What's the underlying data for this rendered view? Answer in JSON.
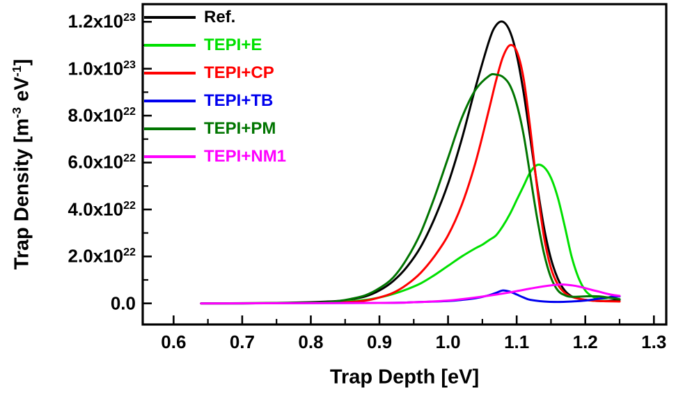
{
  "figure": {
    "background": "#ffffff"
  },
  "chart_data": {
    "type": "line",
    "title": "",
    "xlabel": "Trap Depth [eV]",
    "ylabel_parts": [
      {
        "text": "Trap Density [m"
      },
      {
        "sup": "-3"
      },
      {
        "text": " eV"
      },
      {
        "sup": "-1"
      },
      {
        "text": "]"
      }
    ],
    "grid": false,
    "legend_position": "top-left",
    "x_axis": {
      "min": 0.555,
      "max": 1.318,
      "major_ticks": [
        0.6,
        0.7,
        0.8,
        0.9,
        1.0,
        1.1,
        1.2,
        1.3
      ],
      "tick_labels": [
        "0.6",
        "0.7",
        "0.8",
        "0.9",
        "1.0",
        "1.1",
        "1.2",
        "1.3"
      ],
      "minor_ticks": [
        0.65,
        0.75,
        0.85,
        0.95,
        1.05,
        1.15,
        1.25
      ]
    },
    "y_axis": {
      "values_scale": "1e22",
      "min": -0.9,
      "max": 12.75,
      "major_ticks": [
        0,
        2,
        4,
        6,
        8,
        10,
        12
      ],
      "tick_labels": [
        {
          "base": "0.0",
          "exp": ""
        },
        {
          "base": "2.0x10",
          "exp": "22"
        },
        {
          "base": "4.0x10",
          "exp": "22"
        },
        {
          "base": "6.0x10",
          "exp": "22"
        },
        {
          "base": "8.0x10",
          "exp": "22"
        },
        {
          "base": "1.0x10",
          "exp": "23"
        },
        {
          "base": "1.2x10",
          "exp": "23"
        }
      ],
      "minor_ticks": [
        1,
        3,
        5,
        7,
        9,
        11
      ]
    },
    "series": [
      {
        "name": "Ref.",
        "color": "#000000",
        "points": [
          [
            0.64,
            0
          ],
          [
            0.7,
            0
          ],
          [
            0.75,
            0.02
          ],
          [
            0.8,
            0.05
          ],
          [
            0.84,
            0.1
          ],
          [
            0.86,
            0.18
          ],
          [
            0.88,
            0.3
          ],
          [
            0.9,
            0.55
          ],
          [
            0.92,
            0.95
          ],
          [
            0.94,
            1.55
          ],
          [
            0.96,
            2.4
          ],
          [
            0.98,
            3.6
          ],
          [
            1.0,
            5.1
          ],
          [
            1.02,
            7.0
          ],
          [
            1.04,
            9.2
          ],
          [
            1.06,
            11.2
          ],
          [
            1.07,
            11.85
          ],
          [
            1.08,
            12.0
          ],
          [
            1.09,
            11.6
          ],
          [
            1.1,
            10.6
          ],
          [
            1.11,
            9.0
          ],
          [
            1.12,
            7.0
          ],
          [
            1.13,
            5.0
          ],
          [
            1.14,
            3.2
          ],
          [
            1.15,
            1.9
          ],
          [
            1.16,
            1.05
          ],
          [
            1.17,
            0.55
          ],
          [
            1.18,
            0.3
          ],
          [
            1.19,
            0.2
          ],
          [
            1.2,
            0.15
          ],
          [
            1.22,
            0.1
          ],
          [
            1.24,
            0.12
          ],
          [
            1.25,
            0.15
          ]
        ]
      },
      {
        "name": "TEPI+E",
        "color": "#00e000",
        "points": [
          [
            0.64,
            0
          ],
          [
            0.8,
            0.02
          ],
          [
            0.85,
            0.08
          ],
          [
            0.88,
            0.15
          ],
          [
            0.9,
            0.25
          ],
          [
            0.92,
            0.4
          ],
          [
            0.94,
            0.6
          ],
          [
            0.96,
            0.85
          ],
          [
            0.98,
            1.2
          ],
          [
            1.0,
            1.6
          ],
          [
            1.02,
            2.0
          ],
          [
            1.04,
            2.35
          ],
          [
            1.05,
            2.5
          ],
          [
            1.06,
            2.7
          ],
          [
            1.07,
            2.9
          ],
          [
            1.08,
            3.3
          ],
          [
            1.09,
            3.8
          ],
          [
            1.1,
            4.4
          ],
          [
            1.11,
            5.0
          ],
          [
            1.12,
            5.6
          ],
          [
            1.13,
            5.9
          ],
          [
            1.14,
            5.8
          ],
          [
            1.15,
            5.35
          ],
          [
            1.16,
            4.5
          ],
          [
            1.17,
            3.3
          ],
          [
            1.18,
            2.0
          ],
          [
            1.19,
            1.1
          ],
          [
            1.2,
            0.55
          ],
          [
            1.21,
            0.3
          ],
          [
            1.22,
            0.2
          ],
          [
            1.23,
            0.22
          ],
          [
            1.24,
            0.3
          ],
          [
            1.25,
            0.3
          ]
        ]
      },
      {
        "name": "TEPI+CP",
        "color": "#ff0000",
        "points": [
          [
            0.64,
            0
          ],
          [
            0.8,
            0.02
          ],
          [
            0.85,
            0.05
          ],
          [
            0.88,
            0.12
          ],
          [
            0.9,
            0.25
          ],
          [
            0.92,
            0.45
          ],
          [
            0.94,
            0.8
          ],
          [
            0.96,
            1.3
          ],
          [
            0.98,
            2.0
          ],
          [
            1.0,
            2.9
          ],
          [
            1.02,
            4.2
          ],
          [
            1.04,
            6.0
          ],
          [
            1.06,
            8.3
          ],
          [
            1.07,
            9.5
          ],
          [
            1.08,
            10.5
          ],
          [
            1.09,
            11.0
          ],
          [
            1.1,
            10.75
          ],
          [
            1.11,
            9.6
          ],
          [
            1.12,
            7.4
          ],
          [
            1.13,
            4.9
          ],
          [
            1.14,
            2.8
          ],
          [
            1.15,
            1.5
          ],
          [
            1.16,
            0.8
          ],
          [
            1.17,
            0.45
          ],
          [
            1.18,
            0.28
          ],
          [
            1.2,
            0.15
          ],
          [
            1.22,
            0.1
          ],
          [
            1.25,
            0.08
          ]
        ]
      },
      {
        "name": "TEPI+TB",
        "color": "#0000ee",
        "points": [
          [
            0.64,
            0
          ],
          [
            0.9,
            0.02
          ],
          [
            0.95,
            0.05
          ],
          [
            1.0,
            0.1
          ],
          [
            1.02,
            0.15
          ],
          [
            1.04,
            0.22
          ],
          [
            1.06,
            0.35
          ],
          [
            1.07,
            0.45
          ],
          [
            1.08,
            0.55
          ],
          [
            1.09,
            0.5
          ],
          [
            1.1,
            0.38
          ],
          [
            1.11,
            0.25
          ],
          [
            1.12,
            0.15
          ],
          [
            1.14,
            0.08
          ],
          [
            1.16,
            0.06
          ],
          [
            1.18,
            0.08
          ],
          [
            1.2,
            0.12
          ],
          [
            1.22,
            0.2
          ],
          [
            1.24,
            0.28
          ],
          [
            1.25,
            0.3
          ]
        ]
      },
      {
        "name": "TEPI+PM",
        "color": "#007500",
        "points": [
          [
            0.64,
            0
          ],
          [
            0.8,
            0.03
          ],
          [
            0.84,
            0.1
          ],
          [
            0.86,
            0.2
          ],
          [
            0.88,
            0.35
          ],
          [
            0.9,
            0.65
          ],
          [
            0.92,
            1.1
          ],
          [
            0.94,
            1.9
          ],
          [
            0.96,
            3.0
          ],
          [
            0.98,
            4.5
          ],
          [
            1.0,
            6.2
          ],
          [
            1.02,
            7.9
          ],
          [
            1.04,
            9.1
          ],
          [
            1.06,
            9.7
          ],
          [
            1.07,
            9.75
          ],
          [
            1.08,
            9.65
          ],
          [
            1.09,
            9.3
          ],
          [
            1.1,
            8.5
          ],
          [
            1.11,
            7.2
          ],
          [
            1.12,
            5.4
          ],
          [
            1.13,
            3.6
          ],
          [
            1.14,
            2.1
          ],
          [
            1.15,
            1.1
          ],
          [
            1.16,
            0.55
          ],
          [
            1.17,
            0.35
          ],
          [
            1.18,
            0.28
          ],
          [
            1.2,
            0.3
          ],
          [
            1.22,
            0.3
          ],
          [
            1.24,
            0.22
          ],
          [
            1.25,
            0.18
          ]
        ]
      },
      {
        "name": "TEPI+NM1",
        "color": "#ff00ff",
        "points": [
          [
            0.64,
            0
          ],
          [
            0.9,
            0.02
          ],
          [
            0.95,
            0.05
          ],
          [
            1.0,
            0.12
          ],
          [
            1.02,
            0.18
          ],
          [
            1.04,
            0.25
          ],
          [
            1.06,
            0.33
          ],
          [
            1.08,
            0.42
          ],
          [
            1.1,
            0.52
          ],
          [
            1.12,
            0.63
          ],
          [
            1.14,
            0.73
          ],
          [
            1.16,
            0.8
          ],
          [
            1.17,
            0.8
          ],
          [
            1.18,
            0.77
          ],
          [
            1.19,
            0.72
          ],
          [
            1.2,
            0.65
          ],
          [
            1.21,
            0.57
          ],
          [
            1.22,
            0.5
          ],
          [
            1.23,
            0.42
          ],
          [
            1.24,
            0.36
          ],
          [
            1.25,
            0.32
          ]
        ]
      }
    ]
  }
}
